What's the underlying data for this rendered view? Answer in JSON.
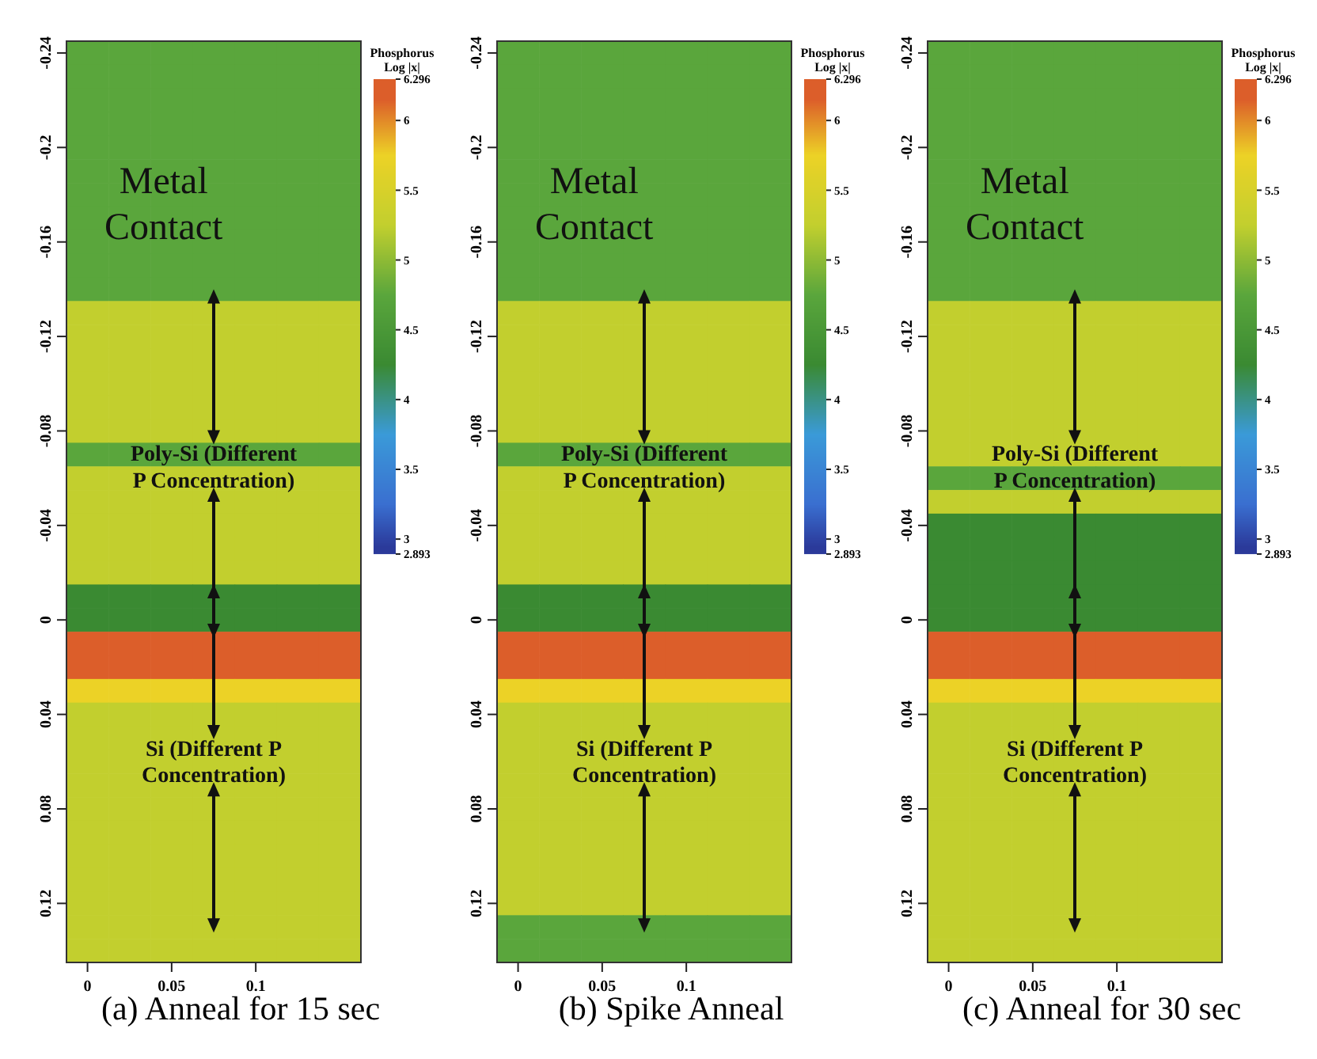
{
  "chart_data": [
    {
      "type": "heatmap",
      "title": "(a) Anneal for 15 sec",
      "clabel": "Phosphorus Log |x|",
      "categories": [
        "0",
        null,
        "0.05",
        null,
        "0.1",
        null,
        null
      ],
      "y_categories": [
        "-0.24",
        null,
        null,
        null,
        "-0.2",
        null,
        null,
        null,
        "-0.16",
        null,
        null,
        null,
        "-0.12",
        null,
        null,
        null,
        "-0.08",
        null,
        null,
        null,
        "-0.04",
        null,
        null,
        null,
        "0",
        null,
        null,
        null,
        "0.04",
        null,
        null,
        null,
        "0.08",
        null,
        null,
        null,
        "0.12",
        null,
        null
      ],
      "clim": [
        2.893,
        6.296
      ],
      "cticks": [
        2.893,
        3,
        3.5,
        4,
        4.5,
        5,
        5.5,
        6,
        6.296
      ],
      "colors": [
        "#2b3a9a",
        "#3a6fd0",
        "#3a9ad8",
        "#3a8a32",
        "#5aa63c",
        "#c2cf2e",
        "#ecd226",
        "#dc5e2a"
      ],
      "cells": [
        [
          4.75,
          4.75,
          4.75,
          4.75,
          4.75,
          4.75,
          4.75
        ],
        [
          4.75,
          4.75,
          4.75,
          4.75,
          4.75,
          4.75,
          4.75
        ],
        [
          4.75,
          4.75,
          4.75,
          4.75,
          4.75,
          4.75,
          4.75
        ],
        [
          4.75,
          4.75,
          4.75,
          4.75,
          4.75,
          4.75,
          4.75
        ],
        [
          4.75,
          4.75,
          4.75,
          4.75,
          4.75,
          4.75,
          4.75
        ],
        [
          4.75,
          4.75,
          4.75,
          4.75,
          4.75,
          4.75,
          4.75
        ],
        [
          4.75,
          4.75,
          4.75,
          4.75,
          4.75,
          4.75,
          4.75
        ],
        [
          4.75,
          4.75,
          4.75,
          4.75,
          4.75,
          4.75,
          4.75
        ],
        [
          4.75,
          4.75,
          4.75,
          4.75,
          4.75,
          4.75,
          4.75
        ],
        [
          4.75,
          4.75,
          4.75,
          4.75,
          4.75,
          4.75,
          4.75
        ],
        [
          4.75,
          4.75,
          4.75,
          4.75,
          4.75,
          4.75,
          4.75
        ],
        [
          5.25,
          5.25,
          5.25,
          5.25,
          5.25,
          5.25,
          5.25
        ],
        [
          5.25,
          5.25,
          5.25,
          5.25,
          5.25,
          5.25,
          5.25
        ],
        [
          5.25,
          5.25,
          5.25,
          5.25,
          5.25,
          5.25,
          5.25
        ],
        [
          5.25,
          5.25,
          5.25,
          5.25,
          5.25,
          5.25,
          5.25
        ],
        [
          5.25,
          5.25,
          5.25,
          5.25,
          5.25,
          5.25,
          5.25
        ],
        [
          5.25,
          5.25,
          5.25,
          5.25,
          5.25,
          5.25,
          5.25
        ],
        [
          4.75,
          4.75,
          4.75,
          4.75,
          4.75,
          4.75,
          4.75
        ],
        [
          5.25,
          5.25,
          5.25,
          5.25,
          5.25,
          5.25,
          5.25
        ],
        [
          5.25,
          5.25,
          5.25,
          5.25,
          5.25,
          5.25,
          5.25
        ],
        [
          5.25,
          5.25,
          5.25,
          5.25,
          5.25,
          5.25,
          5.25
        ],
        [
          5.25,
          5.25,
          5.25,
          5.25,
          5.25,
          5.25,
          5.25
        ],
        [
          5.25,
          5.25,
          5.25,
          5.25,
          5.25,
          5.25,
          5.25
        ],
        [
          4.25,
          4.25,
          4.25,
          4.25,
          4.25,
          4.25,
          4.25
        ],
        [
          4.25,
          4.25,
          4.25,
          4.25,
          4.25,
          4.25,
          4.25
        ],
        [
          6.15,
          6.15,
          6.15,
          6.15,
          6.15,
          6.15,
          6.15
        ],
        [
          6.15,
          6.15,
          6.15,
          6.15,
          6.15,
          6.15,
          6.15
        ],
        [
          5.75,
          5.75,
          5.75,
          5.75,
          5.75,
          5.75,
          5.75
        ],
        [
          5.25,
          5.25,
          5.25,
          5.25,
          5.25,
          5.25,
          5.25
        ],
        [
          5.25,
          5.25,
          5.25,
          5.25,
          5.25,
          5.25,
          5.25
        ],
        [
          5.25,
          5.25,
          5.25,
          5.25,
          5.25,
          5.25,
          5.25
        ],
        [
          5.25,
          5.25,
          5.25,
          5.25,
          5.25,
          5.25,
          5.25
        ],
        [
          5.25,
          5.25,
          5.25,
          5.25,
          5.25,
          5.25,
          5.25
        ],
        [
          5.25,
          5.25,
          5.25,
          5.25,
          5.25,
          5.25,
          5.25
        ],
        [
          5.25,
          5.25,
          5.25,
          5.25,
          5.25,
          5.25,
          5.25
        ],
        [
          5.25,
          5.25,
          5.25,
          5.25,
          5.25,
          5.25,
          5.25
        ],
        [
          5.25,
          5.25,
          5.25,
          5.25,
          5.25,
          5.25,
          5.25
        ],
        [
          5.25,
          5.25,
          5.25,
          5.25,
          5.25,
          5.25,
          5.25
        ],
        [
          5.25,
          5.25,
          5.25,
          5.25,
          5.25,
          5.25,
          5.25
        ]
      ],
      "annotations": [
        "Metal Contact",
        "Poly-Si (Different P Concentration)",
        "Si (Different P Concentration)"
      ]
    },
    {
      "type": "heatmap",
      "title": "(b) Spike Anneal",
      "clabel": "Phosphorus Log |x|",
      "categories": [
        "0",
        null,
        "0.05",
        null,
        "0.1",
        null,
        null
      ],
      "y_categories": [
        "-0.24",
        null,
        null,
        null,
        "-0.2",
        null,
        null,
        null,
        "-0.16",
        null,
        null,
        null,
        "-0.12",
        null,
        null,
        null,
        "-0.08",
        null,
        null,
        null,
        "-0.04",
        null,
        null,
        null,
        "0",
        null,
        null,
        null,
        "0.04",
        null,
        null,
        null,
        "0.08",
        null,
        null,
        null,
        "0.12",
        null,
        null
      ],
      "clim": [
        2.893,
        6.296
      ],
      "cticks": [
        2.893,
        3,
        3.5,
        4,
        4.5,
        5,
        5.5,
        6,
        6.296
      ],
      "colors": [
        "#2b3a9a",
        "#3a6fd0",
        "#3a9ad8",
        "#3a8a32",
        "#5aa63c",
        "#c2cf2e",
        "#ecd226",
        "#dc5e2a"
      ],
      "cells": [
        [
          4.75,
          4.75,
          4.75,
          4.75,
          4.75,
          4.75,
          4.75
        ],
        [
          4.75,
          4.75,
          4.75,
          4.75,
          4.75,
          4.75,
          4.75
        ],
        [
          4.75,
          4.75,
          4.75,
          4.75,
          4.75,
          4.75,
          4.75
        ],
        [
          4.75,
          4.75,
          4.75,
          4.75,
          4.75,
          4.75,
          4.75
        ],
        [
          4.75,
          4.75,
          4.75,
          4.75,
          4.75,
          4.75,
          4.75
        ],
        [
          4.75,
          4.75,
          4.75,
          4.75,
          4.75,
          4.75,
          4.75
        ],
        [
          4.75,
          4.75,
          4.75,
          4.75,
          4.75,
          4.75,
          4.75
        ],
        [
          4.75,
          4.75,
          4.75,
          4.75,
          4.75,
          4.75,
          4.75
        ],
        [
          4.75,
          4.75,
          4.75,
          4.75,
          4.75,
          4.75,
          4.75
        ],
        [
          4.75,
          4.75,
          4.75,
          4.75,
          4.75,
          4.75,
          4.75
        ],
        [
          4.75,
          4.75,
          4.75,
          4.75,
          4.75,
          4.75,
          4.75
        ],
        [
          5.25,
          5.25,
          5.25,
          5.25,
          5.25,
          5.25,
          5.25
        ],
        [
          5.25,
          5.25,
          5.25,
          5.25,
          5.25,
          5.25,
          5.25
        ],
        [
          5.25,
          5.25,
          5.25,
          5.25,
          5.25,
          5.25,
          5.25
        ],
        [
          5.25,
          5.25,
          5.25,
          5.25,
          5.25,
          5.25,
          5.25
        ],
        [
          5.25,
          5.25,
          5.25,
          5.25,
          5.25,
          5.25,
          5.25
        ],
        [
          5.25,
          5.25,
          5.25,
          5.25,
          5.25,
          5.25,
          5.25
        ],
        [
          4.75,
          4.75,
          4.75,
          4.75,
          4.75,
          4.75,
          4.75
        ],
        [
          5.25,
          5.25,
          5.25,
          5.25,
          5.25,
          5.25,
          5.25
        ],
        [
          5.25,
          5.25,
          5.25,
          5.25,
          5.25,
          5.25,
          5.25
        ],
        [
          5.25,
          5.25,
          5.25,
          5.25,
          5.25,
          5.25,
          5.25
        ],
        [
          5.25,
          5.25,
          5.25,
          5.25,
          5.25,
          5.25,
          5.25
        ],
        [
          5.25,
          5.25,
          5.25,
          5.25,
          5.25,
          5.25,
          5.25
        ],
        [
          4.25,
          4.25,
          4.25,
          4.25,
          4.25,
          4.25,
          4.25
        ],
        [
          4.25,
          4.25,
          4.25,
          4.25,
          4.25,
          4.25,
          4.25
        ],
        [
          6.15,
          6.15,
          6.15,
          6.15,
          6.15,
          6.15,
          6.15
        ],
        [
          6.15,
          6.15,
          6.15,
          6.15,
          6.15,
          6.15,
          6.15
        ],
        [
          5.75,
          5.75,
          5.75,
          5.75,
          5.75,
          5.75,
          5.75
        ],
        [
          5.25,
          5.25,
          5.25,
          5.25,
          5.25,
          5.25,
          5.25
        ],
        [
          5.25,
          5.25,
          5.25,
          5.25,
          5.25,
          5.25,
          5.25
        ],
        [
          5.25,
          5.25,
          5.25,
          5.25,
          5.25,
          5.25,
          5.25
        ],
        [
          5.25,
          5.25,
          5.25,
          5.25,
          5.25,
          5.25,
          5.25
        ],
        [
          5.25,
          5.25,
          5.25,
          5.25,
          5.25,
          5.25,
          5.25
        ],
        [
          5.25,
          5.25,
          5.25,
          5.25,
          5.25,
          5.25,
          5.25
        ],
        [
          5.25,
          5.25,
          5.25,
          5.25,
          5.25,
          5.25,
          5.25
        ],
        [
          5.25,
          5.25,
          5.25,
          5.25,
          5.25,
          5.25,
          5.25
        ],
        [
          5.25,
          5.25,
          5.25,
          5.25,
          5.25,
          5.25,
          5.25
        ],
        [
          4.75,
          4.75,
          4.75,
          4.75,
          4.75,
          4.75,
          4.75
        ],
        [
          4.75,
          4.75,
          4.75,
          4.75,
          4.75,
          4.75,
          4.75
        ]
      ],
      "annotations": [
        "Metal Contact",
        "Poly-Si (Different P Concentration)",
        "Si (Different P Concentration)"
      ]
    },
    {
      "type": "heatmap",
      "title": "(c) Anneal for 30 sec",
      "clabel": "Phosphorus Log |x|",
      "categories": [
        "0",
        null,
        "0.05",
        null,
        "0.1",
        null,
        null
      ],
      "y_categories": [
        "-0.24",
        null,
        null,
        null,
        "-0.2",
        null,
        null,
        null,
        "-0.16",
        null,
        null,
        null,
        "-0.12",
        null,
        null,
        null,
        "-0.08",
        null,
        null,
        null,
        "-0.04",
        null,
        null,
        null,
        "0",
        null,
        null,
        null,
        "0.04",
        null,
        null,
        null,
        "0.08",
        null,
        null,
        null,
        "0.12",
        null,
        null
      ],
      "clim": [
        2.893,
        6.296
      ],
      "cticks": [
        2.893,
        3,
        3.5,
        4,
        4.5,
        5,
        5.5,
        6,
        6.296
      ],
      "colors": [
        "#2b3a9a",
        "#3a6fd0",
        "#3a9ad8",
        "#3a8a32",
        "#5aa63c",
        "#c2cf2e",
        "#ecd226",
        "#dc5e2a"
      ],
      "cells": [
        [
          4.75,
          4.75,
          4.75,
          4.75,
          4.75,
          4.75,
          4.75
        ],
        [
          4.75,
          4.75,
          4.75,
          4.75,
          4.75,
          4.75,
          4.75
        ],
        [
          4.75,
          4.75,
          4.75,
          4.75,
          4.75,
          4.75,
          4.75
        ],
        [
          4.75,
          4.75,
          4.75,
          4.75,
          4.75,
          4.75,
          4.75
        ],
        [
          4.75,
          4.75,
          4.75,
          4.75,
          4.75,
          4.75,
          4.75
        ],
        [
          4.75,
          4.75,
          4.75,
          4.75,
          4.75,
          4.75,
          4.75
        ],
        [
          4.75,
          4.75,
          4.75,
          4.75,
          4.75,
          4.75,
          4.75
        ],
        [
          4.75,
          4.75,
          4.75,
          4.75,
          4.75,
          4.75,
          4.75
        ],
        [
          4.75,
          4.75,
          4.75,
          4.75,
          4.75,
          4.75,
          4.75
        ],
        [
          4.75,
          4.75,
          4.75,
          4.75,
          4.75,
          4.75,
          4.75
        ],
        [
          4.75,
          4.75,
          4.75,
          4.75,
          4.75,
          4.75,
          4.75
        ],
        [
          5.25,
          5.25,
          5.25,
          5.25,
          5.25,
          5.25,
          5.25
        ],
        [
          5.25,
          5.25,
          5.25,
          5.25,
          5.25,
          5.25,
          5.25
        ],
        [
          5.25,
          5.25,
          5.25,
          5.25,
          5.25,
          5.25,
          5.25
        ],
        [
          5.25,
          5.25,
          5.25,
          5.25,
          5.25,
          5.25,
          5.25
        ],
        [
          5.25,
          5.25,
          5.25,
          5.25,
          5.25,
          5.25,
          5.25
        ],
        [
          5.25,
          5.25,
          5.25,
          5.25,
          5.25,
          5.25,
          5.25
        ],
        [
          5.25,
          5.25,
          5.25,
          5.25,
          5.25,
          5.25,
          5.25
        ],
        [
          4.75,
          4.75,
          4.75,
          4.75,
          4.75,
          4.75,
          4.75
        ],
        [
          5.25,
          5.25,
          5.25,
          5.25,
          5.25,
          5.25,
          5.25
        ],
        [
          4.25,
          4.25,
          4.25,
          4.25,
          4.25,
          4.25,
          4.25
        ],
        [
          4.25,
          4.25,
          4.25,
          4.25,
          4.25,
          4.25,
          4.25
        ],
        [
          4.25,
          4.25,
          4.25,
          4.25,
          4.25,
          4.25,
          4.25
        ],
        [
          4.25,
          4.25,
          4.25,
          4.25,
          4.25,
          4.25,
          4.25
        ],
        [
          4.25,
          4.25,
          4.25,
          4.25,
          4.25,
          4.25,
          4.25
        ],
        [
          6.15,
          6.15,
          6.15,
          6.15,
          6.15,
          6.15,
          6.15
        ],
        [
          6.15,
          6.15,
          6.15,
          6.15,
          6.15,
          6.15,
          6.15
        ],
        [
          5.75,
          5.75,
          5.75,
          5.75,
          5.75,
          5.75,
          5.75
        ],
        [
          5.25,
          5.25,
          5.25,
          5.25,
          5.25,
          5.25,
          5.25
        ],
        [
          5.25,
          5.25,
          5.25,
          5.25,
          5.25,
          5.25,
          5.25
        ],
        [
          5.25,
          5.25,
          5.25,
          5.25,
          5.25,
          5.25,
          5.25
        ],
        [
          5.25,
          5.25,
          5.25,
          5.25,
          5.25,
          5.25,
          5.25
        ],
        [
          5.25,
          5.25,
          5.25,
          5.25,
          5.25,
          5.25,
          5.25
        ],
        [
          5.25,
          5.25,
          5.25,
          5.25,
          5.25,
          5.25,
          5.25
        ],
        [
          5.25,
          5.25,
          5.25,
          5.25,
          5.25,
          5.25,
          5.25
        ],
        [
          5.25,
          5.25,
          5.25,
          5.25,
          5.25,
          5.25,
          5.25
        ],
        [
          5.25,
          5.25,
          5.25,
          5.25,
          5.25,
          5.25,
          5.25
        ],
        [
          5.25,
          5.25,
          5.25,
          5.25,
          5.25,
          5.25,
          5.25
        ],
        [
          5.25,
          5.25,
          5.25,
          5.25,
          5.25,
          5.25,
          5.25
        ]
      ],
      "annotations": [
        "Metal Contact",
        "Poly-Si (Different P Concentration)",
        "Si (Different P Concentration)"
      ]
    }
  ]
}
